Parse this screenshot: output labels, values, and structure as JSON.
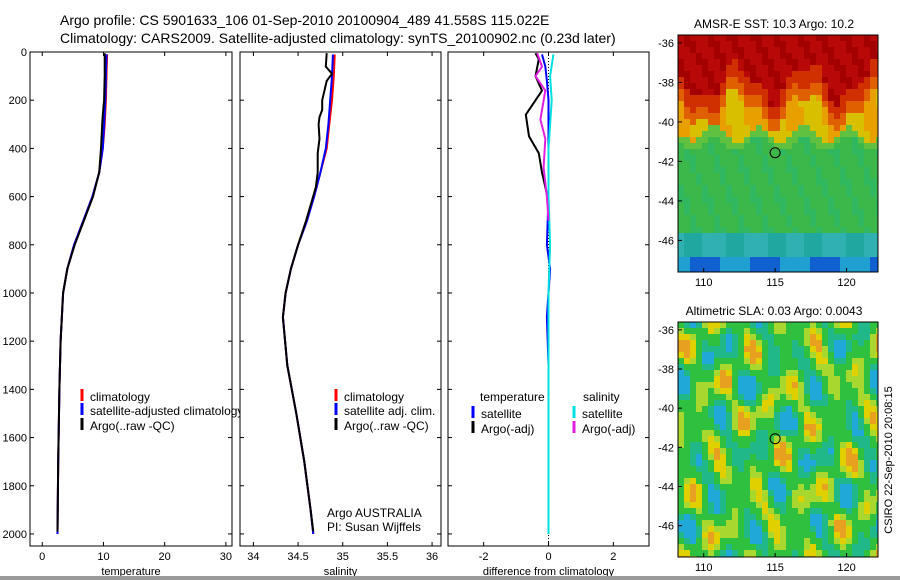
{
  "header": {
    "title_line1": "Argo profile: CS 5901633_106 01-Sep-2010 20100904_489 41.558S 115.022E",
    "title_line2": "Climatology: CARS2009. Satellite-adjusted climatology: synTS_20100902.nc (0.23d later)"
  },
  "chart_data": [
    {
      "type": "line",
      "xlabel": "temperature",
      "xlim": [
        -2,
        31
      ],
      "ylim": [
        0,
        2050
      ],
      "xticks": [
        0,
        10,
        20,
        30
      ],
      "yticks": [
        0,
        200,
        400,
        600,
        800,
        1000,
        1200,
        1400,
        1600,
        1800,
        2000
      ],
      "colors": {
        "climatology": "#ff0000",
        "satellite": "#0000ff",
        "argo": "#000000"
      },
      "legend": [
        "climatology",
        "satellite-adjusted climatology",
        "Argo(..raw -QC)"
      ],
      "series": [
        {
          "name": "climatology",
          "x": [
            10.6,
            10.5,
            10.4,
            10.2,
            9.9,
            9.3,
            8.2,
            6.7,
            5.2,
            4.1,
            3.4,
            3.0,
            2.8,
            2.6,
            2.5
          ],
          "y": [
            10,
            100,
            200,
            300,
            400,
            500,
            600,
            700,
            800,
            900,
            1000,
            1200,
            1400,
            1700,
            2000
          ]
        },
        {
          "name": "satellite-adjusted climatology",
          "x": [
            10.5,
            10.4,
            10.3,
            10.1,
            9.9,
            9.3,
            8.2,
            6.7,
            5.2,
            4.1,
            3.4,
            3.0,
            2.8,
            2.6,
            2.5
          ],
          "y": [
            10,
            100,
            200,
            300,
            400,
            500,
            600,
            700,
            800,
            900,
            1000,
            1200,
            1400,
            1700,
            2000
          ]
        },
        {
          "name": "Argo(..raw -QC)",
          "x": [
            10.2,
            10.2,
            10.1,
            9.9,
            9.8,
            9.6,
            9.3,
            8.3,
            6.8,
            5.3,
            4.1,
            3.4,
            3.0,
            2.8,
            2.6,
            2.5
          ],
          "y": [
            5,
            100,
            200,
            260,
            300,
            400,
            500,
            600,
            700,
            800,
            900,
            1000,
            1200,
            1400,
            1700,
            1990
          ]
        }
      ]
    },
    {
      "type": "line",
      "xlabel": "salinity",
      "xlim": [
        33.85,
        36.1
      ],
      "ylim": [
        0,
        2050
      ],
      "xticks": [
        34,
        34.5,
        35,
        35.5,
        36
      ],
      "colors": {
        "climatology": "#ff0000",
        "satellite": "#0000ff",
        "argo": "#000000"
      },
      "legend": [
        "climatology",
        "satellite adj. clim.",
        "Argo(..raw -QC)"
      ],
      "annotation": [
        "Argo AUSTRALIA",
        "PI: Susan Wijffels"
      ],
      "series": [
        {
          "name": "climatology",
          "x": [
            34.91,
            34.9,
            34.88,
            34.85,
            34.82,
            34.75,
            34.68,
            34.6,
            34.5,
            34.42,
            34.36,
            34.33,
            34.38,
            34.48,
            34.57,
            34.64,
            34.67
          ],
          "y": [
            10,
            100,
            200,
            300,
            400,
            500,
            600,
            700,
            800,
            900,
            1000,
            1100,
            1300,
            1500,
            1700,
            1900,
            2000
          ]
        },
        {
          "name": "satellite adj. clim.",
          "x": [
            34.89,
            34.88,
            34.86,
            34.84,
            34.81,
            34.75,
            34.68,
            34.6,
            34.5,
            34.42,
            34.36,
            34.33,
            34.38,
            34.48,
            34.57,
            34.64,
            34.67
          ],
          "y": [
            10,
            100,
            200,
            300,
            400,
            500,
            600,
            700,
            800,
            900,
            1000,
            1100,
            1300,
            1500,
            1700,
            1900,
            2000
          ]
        },
        {
          "name": "Argo(..raw -QC)",
          "x": [
            34.82,
            34.81,
            34.88,
            34.82,
            34.77,
            34.77,
            34.74,
            34.73,
            34.74,
            34.72,
            34.72,
            34.7,
            34.66,
            34.59,
            34.5,
            34.42,
            34.36,
            34.33,
            34.38,
            34.48,
            34.57,
            34.64,
            34.67
          ],
          "y": [
            5,
            60,
            90,
            120,
            200,
            240,
            270,
            300,
            360,
            420,
            500,
            560,
            610,
            700,
            800,
            900,
            1000,
            1100,
            1300,
            1500,
            1700,
            1900,
            1990
          ]
        }
      ]
    },
    {
      "type": "line",
      "xlabel": "difference from climatology",
      "xlim": [
        -3.1,
        3.1
      ],
      "ylim": [
        0,
        2050
      ],
      "xticks": [
        -2,
        0,
        2
      ],
      "legend_temperature": {
        "heading": "temperature",
        "items": [
          "satellite",
          "Argo(-adj)"
        ],
        "colors": [
          "#0000ff",
          "#000000"
        ]
      },
      "legend_salinity": {
        "heading": "salinity",
        "items": [
          "satellite",
          "Argo(-adj)"
        ],
        "colors": [
          "#00e0e0",
          "#e020e0"
        ]
      },
      "series": [
        {
          "name": "temperature satellite",
          "x": [
            -0.2,
            -0.1,
            -0.05,
            0,
            0,
            0,
            -0.05,
            0.05,
            0,
            -0.05,
            0,
            0,
            0
          ],
          "y": [
            10,
            60,
            120,
            200,
            400,
            600,
            800,
            900,
            1000,
            1100,
            1300,
            1600,
            2000
          ]
        },
        {
          "name": "temperature Argo(-adj)",
          "x": [
            -0.4,
            -0.3,
            -0.4,
            -0.2,
            -0.7,
            -0.6,
            -0.3,
            -0.2,
            -0.1,
            0,
            0
          ],
          "y": [
            5,
            30,
            100,
            160,
            260,
            350,
            420,
            500,
            560,
            620,
            700
          ]
        },
        {
          "name": "salinity satellite",
          "x": [
            0.15,
            0.05,
            0.1,
            0.05,
            0,
            0,
            0.05,
            0,
            0,
            0,
            0
          ],
          "y": [
            10,
            100,
            200,
            300,
            400,
            600,
            800,
            1000,
            1200,
            1600,
            2000
          ]
        },
        {
          "name": "salinity Argo(-adj)",
          "x": [
            -0.35,
            -0.2,
            -0.4,
            -0.1,
            -0.25,
            -0.1,
            -0.15,
            -0.05,
            0
          ],
          "y": [
            5,
            60,
            100,
            160,
            280,
            360,
            480,
            600,
            700
          ]
        }
      ]
    },
    {
      "type": "heatmap",
      "title": "AMSR-E SST: 10.3 Argo: 10.2",
      "xlim": [
        108.2,
        122.2
      ],
      "ylim": [
        -47.6,
        -35.6
      ],
      "xticks": [
        110,
        115,
        120
      ],
      "yticks": [
        -36,
        -38,
        -40,
        -42,
        -44,
        -46
      ],
      "marker": {
        "x": 115.0,
        "y": -41.56
      }
    },
    {
      "type": "heatmap",
      "title": "Altimetric SLA: 0.03 Argo: 0.0043",
      "xlim": [
        108.2,
        122.2
      ],
      "ylim": [
        -47.6,
        -35.6
      ],
      "xticks": [
        110,
        115,
        120
      ],
      "yticks": [
        -36,
        -38,
        -40,
        -42,
        -44,
        -46
      ],
      "marker": {
        "x": 115.0,
        "y": -41.56
      }
    }
  ],
  "footer": {
    "side_label": "CSIRO 22-Sep-2010 20:08:15"
  }
}
